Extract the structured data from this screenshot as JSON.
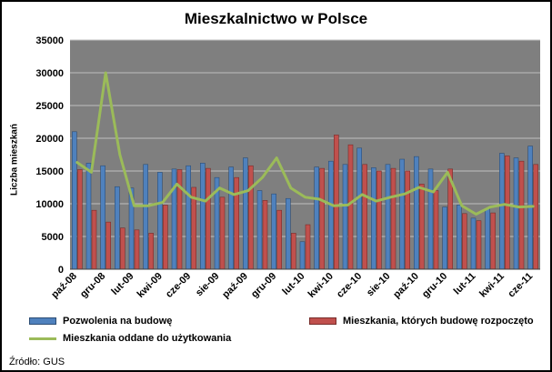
{
  "source": "Źródło: GUS",
  "chart_data": {
    "type": "bar",
    "title": "Mieszkalnictwo w Polsce",
    "xlabel": "",
    "ylabel": "Liczba mieszkań",
    "ylim": [
      0,
      35000
    ],
    "ytick_step": 5000,
    "yticks": [
      0,
      5000,
      10000,
      15000,
      20000,
      25000,
      30000,
      35000
    ],
    "grid": true,
    "legend_position": "bottom",
    "plot_bg": "#7f7f7f",
    "gridline_color": "#bfbfbf",
    "x": [
      "paź-08",
      "lis-08",
      "gru-08",
      "sty-09",
      "lut-09",
      "mar-09",
      "kwi-09",
      "maj-09",
      "cze-09",
      "lip-09",
      "sie-09",
      "wrz-09",
      "paź-09",
      "lis-09",
      "gru-09",
      "sty-10",
      "lut-10",
      "mar-10",
      "kwi-10",
      "maj-10",
      "cze-10",
      "lip-10",
      "sie-10",
      "wrz-10",
      "paź-10",
      "lis-10",
      "gru-10",
      "sty-11",
      "lut-11",
      "mar-11",
      "kwi-11",
      "maj-11",
      "cze-11"
    ],
    "visible_tick_labels": [
      "paź-08",
      "gru-08",
      "lut-09",
      "kwi-09",
      "cze-09",
      "sie-09",
      "paź-09",
      "gru-09",
      "lut-10",
      "kwi-10",
      "cze-10",
      "sie-10",
      "paź-10",
      "gru-10",
      "lut-11",
      "kwi-11",
      "cze-11"
    ],
    "tick_label_every": 2,
    "series": [
      {
        "name": "Pozwolenia na budowę",
        "type": "bar",
        "color": "#4f81bd",
        "border": "#2c4d74",
        "values": [
          21000,
          16200,
          15800,
          12600,
          12400,
          16000,
          14800,
          15300,
          15800,
          16200,
          14000,
          15600,
          17000,
          12000,
          11500,
          10800,
          4200,
          15600,
          16500,
          16000,
          18500,
          15500,
          16000,
          16800,
          17200,
          15300,
          9500,
          9800,
          7800,
          9200,
          17700,
          17000,
          18800
        ]
      },
      {
        "name": "Mieszkania, których budowę rozpoczęto",
        "type": "bar",
        "color": "#c0504d",
        "border": "#772c2a",
        "values": [
          15200,
          9000,
          7200,
          6300,
          6000,
          5500,
          9800,
          15200,
          12500,
          15400,
          11000,
          14000,
          15800,
          10500,
          9000,
          5500,
          6800,
          15400,
          20500,
          19000,
          16000,
          15000,
          15400,
          15000,
          13000,
          12000,
          15300,
          8500,
          7400,
          8600,
          17300,
          16500,
          16000
        ]
      },
      {
        "name": "Mieszkania oddane do użytkowania",
        "type": "line",
        "color": "#9bbb59",
        "values": [
          16300,
          14800,
          30000,
          17500,
          9700,
          9700,
          10200,
          13000,
          11000,
          10400,
          12400,
          11400,
          12000,
          14000,
          17000,
          12400,
          11000,
          10700,
          9700,
          9800,
          11400,
          10400,
          11000,
          11500,
          12500,
          11800,
          14800,
          9700,
          8400,
          9500,
          9900,
          9500,
          9600
        ]
      }
    ]
  }
}
